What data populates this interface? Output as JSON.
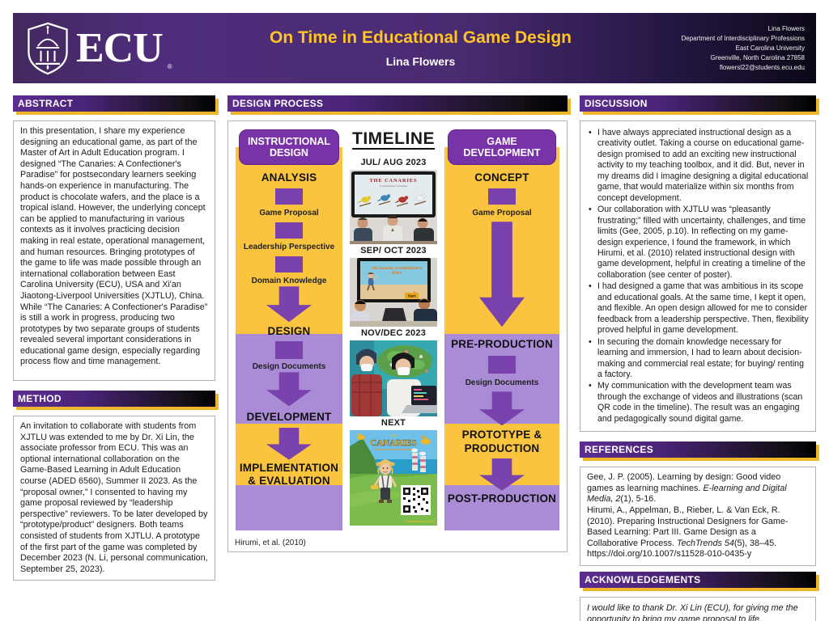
{
  "header": {
    "logo_text": "ECU",
    "logo_reg": "®",
    "title": "On Time in Educational Game Design",
    "author": "Lina Flowers",
    "contact_lines": [
      "Lina Flowers",
      "Department of Interdisciplinary Professions",
      "East Carolina University",
      "Greenville, North Carolina 27858",
      "flowersl22@students.ecu.edu"
    ]
  },
  "colors": {
    "ecu_purple": "#4F2D7C",
    "title_gold": "#FFC425",
    "bar_accent_gold": "#EFB52B",
    "flow_yellow": "#FBC43E",
    "flow_lavender": "#A98BD6",
    "arrow_purple": "#7A42AD",
    "badge_purple": "#7833A8"
  },
  "abstract": {
    "heading": "ABSTRACT",
    "body": "In this presentation, I share my experience designing an educational game, as part of the Master of Art in Adult Education program. I designed “The Canaries: A Confectioner's Paradise” for postsecondary learners seeking hands-on experience in manufacturing. The product is chocolate wafers, and the place is a tropical island. However, the underlying concept can be applied to manufacturing in various contexts as it involves practicing decision making in real estate, operational management, and human resources. Bringing prototypes of the game to life was made possible through an international collaboration between East Carolina University (ECU), USA and Xi'an Jiaotong-Liverpool Universities (XJTLU), China. While “The Canaries: A Confectioner's Paradise” is still a work in progress, producing two prototypes by two separate groups of students revealed several important considerations in educational game design, especially regarding process flow and time management."
  },
  "method": {
    "heading": "METHOD",
    "body": "An invitation to collaborate with students from XJTLU was extended to me by Dr. Xi Lin, the associate professor from ECU. This was an optional international collaboration on the Game-Based Learning in Adult Education course (ADED 6560), Summer II 2023. As the “proposal owner,” I consented to having my game proposal reviewed by “leadership perspective” reviewers. To be later developed by “prototype/product” designers. Both teams consisted of students from XJTLU. A prototype of the first part of the game was completed by December 2023 (N. Li, personal communication, September 25, 2023)."
  },
  "process": {
    "heading": "DESIGN PROCESS",
    "caption": "Hirumi, et al. (2010)",
    "instructional": {
      "badge": "INSTRUCTIONAL DESIGN",
      "phase1": "ANALYSIS",
      "sub1": "Game Proposal",
      "sub2": "Leadership Perspective",
      "sub3": "Domain Knowledge",
      "phase2": "DESIGN",
      "sub4": "Design Documents",
      "phase3": "DEVELOPMENT",
      "phase4": "IMPLEMENTATION & EVALUATION"
    },
    "game_dev": {
      "badge": "GAME DEVELOPMENT",
      "phase1": "CONCEPT",
      "sub1": "Game Proposal",
      "phase2": "PRE-PRODUCTION",
      "sub2": "Design Documents",
      "phase3": "PROTOTYPE & PRODUCTION",
      "phase4": "POST-PRODUCTION"
    },
    "timeline": {
      "title": "TIMELINE",
      "entry1": {
        "date": "JUL/ AUG 2023",
        "screen_title": "THE CANARIES",
        "screen_sub": "A Confectioner's Paradise"
      },
      "entry2": {
        "date": "SEP/ OCT 2023",
        "screen_title_1": "The Canaries: A Confectioner's",
        "screen_title_2": "Island",
        "start_button": "Start"
      },
      "entry3": {
        "date": "NOV/DEC 2023"
      },
      "entry4": {
        "label": "NEXT",
        "title_the": "THE",
        "title_main": "CANARIES",
        "subtitle": "A CONFECTIONER'S PARADISE",
        "credit": "©LinaFlowers 2023"
      }
    }
  },
  "discussion": {
    "heading": "DISCUSSION",
    "bullets": [
      "I have always appreciated instructional design as a creativity outlet. Taking a course on educational game-design promised to add an exciting new instructional activity to my teaching toolbox, and it did. But, never in my dreams did I imagine designing a digital educational game, that would materialize within six months from concept development.",
      "Our collaboration with XJTLU was “pleasantly frustrating;” filled with uncertainty, challenges, and time limits (Gee, 2005, p.10). In reflecting on my game-design experience, I found the framework, in which Hirumi, et al. (2010) related instructional design with game development, helpful in creating a timeline of the collaboration (see center of poster).",
      "I had designed a game that was ambitious in its scope and educational goals. At the same time, I kept it open, and flexible. An open design allowed for me to consider feedback from a leadership perspective. Then, flexibility proved helpful in game development.",
      "In securing the domain knowledge necessary for learning and immersion, I had to learn about decision-making and commercial real estate; for buying/ renting a factory.",
      "My communication with the development team was through the exchange of videos and illustrations (scan QR code in the timeline). The result was an engaging and pedagogically sound digital game."
    ]
  },
  "references": {
    "heading": "REFERENCES",
    "items": [
      [
        {
          "t": "Gee, J. P. (2005). Learning by design: Good video games as learning machines. "
        },
        {
          "t": "E-learning and Digital Media, 2",
          "i": true
        },
        {
          "t": "(1), 5-16."
        }
      ],
      [
        {
          "t": "Hirumi, A., Appelman, B., Rieber, L. & Van Eck, R. (2010). Preparing Instructional Designers for Game-Based Learning: Part III. Game Design as a Collaborative Process. "
        },
        {
          "t": "TechTrends 54",
          "i": true
        },
        {
          "t": "(5), 38–45. https://doi.org/10.1007/s11528-010-0435-y"
        }
      ]
    ]
  },
  "acknowledgements": {
    "heading": "ACKNOWLEDGEMENTS",
    "body": "I would like to thank Dr. Xi Lin (ECU), for giving me the opportunity to bring my game proposal to life."
  }
}
